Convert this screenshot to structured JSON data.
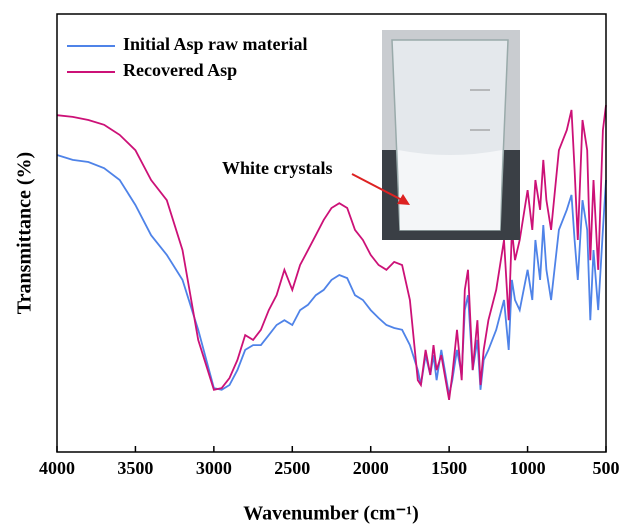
{
  "chart_data": {
    "type": "line",
    "xlabel": "Wavenumber (cm⁻¹)",
    "ylabel": "Transmittance (%)",
    "x": [
      4000,
      3900,
      3800,
      3700,
      3600,
      3500,
      3400,
      3300,
      3200,
      3100,
      3000,
      2950,
      2900,
      2850,
      2800,
      2750,
      2700,
      2650,
      2600,
      2550,
      2500,
      2450,
      2400,
      2350,
      2300,
      2250,
      2200,
      2150,
      2100,
      2050,
      2000,
      1950,
      1900,
      1850,
      1800,
      1750,
      1700,
      1680,
      1650,
      1620,
      1600,
      1580,
      1550,
      1500,
      1480,
      1450,
      1420,
      1400,
      1380,
      1350,
      1320,
      1300,
      1280,
      1250,
      1200,
      1150,
      1120,
      1100,
      1080,
      1050,
      1000,
      970,
      950,
      920,
      900,
      880,
      850,
      800,
      750,
      720,
      700,
      680,
      650,
      620,
      600,
      580,
      550,
      520,
      500
    ],
    "series": [
      {
        "name": "Initial Asp raw material",
        "color": "#4f83e8",
        "values": [
          67.8,
          66.7,
          66.2,
          64.8,
          62.1,
          56.4,
          49.5,
          45.0,
          39.3,
          27.9,
          14.6,
          14.2,
          15.3,
          18.7,
          23.3,
          24.4,
          24.4,
          26.7,
          29.0,
          30.1,
          29.0,
          32.4,
          33.6,
          35.8,
          37.0,
          39.3,
          40.4,
          39.7,
          35.8,
          34.7,
          32.4,
          30.6,
          29.0,
          28.3,
          27.9,
          24.4,
          18.7,
          15.3,
          22.1,
          17.6,
          22.1,
          16.4,
          23.3,
          13.0,
          16.4,
          23.3,
          17.6,
          32.4,
          35.8,
          18.7,
          25.6,
          14.2,
          21.0,
          23.3,
          27.9,
          34.7,
          23.3,
          39.3,
          34.7,
          32.4,
          41.6,
          34.7,
          48.4,
          39.3,
          51.8,
          41.6,
          34.7,
          50.7,
          55.3,
          58.7,
          48.4,
          39.3,
          57.5,
          50.7,
          30.1,
          46.1,
          32.4,
          50.7,
          62.1
        ]
      },
      {
        "name": "Recovered Asp",
        "color": "#cc1177",
        "values": [
          76.9,
          76.5,
          75.8,
          74.7,
          72.4,
          68.9,
          62.1,
          57.5,
          46.1,
          25.6,
          14.2,
          14.6,
          16.9,
          21.0,
          26.7,
          25.6,
          27.9,
          32.4,
          35.8,
          41.6,
          37.0,
          42.7,
          46.1,
          49.5,
          53.0,
          55.7,
          56.8,
          55.7,
          50.7,
          48.4,
          45.0,
          42.7,
          41.6,
          43.4,
          42.7,
          34.7,
          16.4,
          15.3,
          23.3,
          17.6,
          24.4,
          18.7,
          22.1,
          11.9,
          17.6,
          27.9,
          16.4,
          37.0,
          41.6,
          18.7,
          30.1,
          15.3,
          23.3,
          30.1,
          37.0,
          48.4,
          30.1,
          50.7,
          43.8,
          48.4,
          59.8,
          50.7,
          62.1,
          55.3,
          66.7,
          57.5,
          50.7,
          68.9,
          73.5,
          78.1,
          64.4,
          48.4,
          75.8,
          68.9,
          43.8,
          62.1,
          41.6,
          73.5,
          79.2
        ]
      }
    ],
    "xlim": [
      4000,
      500
    ],
    "xticks": [
      4000,
      3500,
      3000,
      2500,
      2000,
      1500,
      1000,
      500
    ],
    "ylim": [
      0,
      100
    ],
    "legend": "upper left",
    "annotation": {
      "text": "White crystals",
      "color": "#dd2222"
    }
  }
}
